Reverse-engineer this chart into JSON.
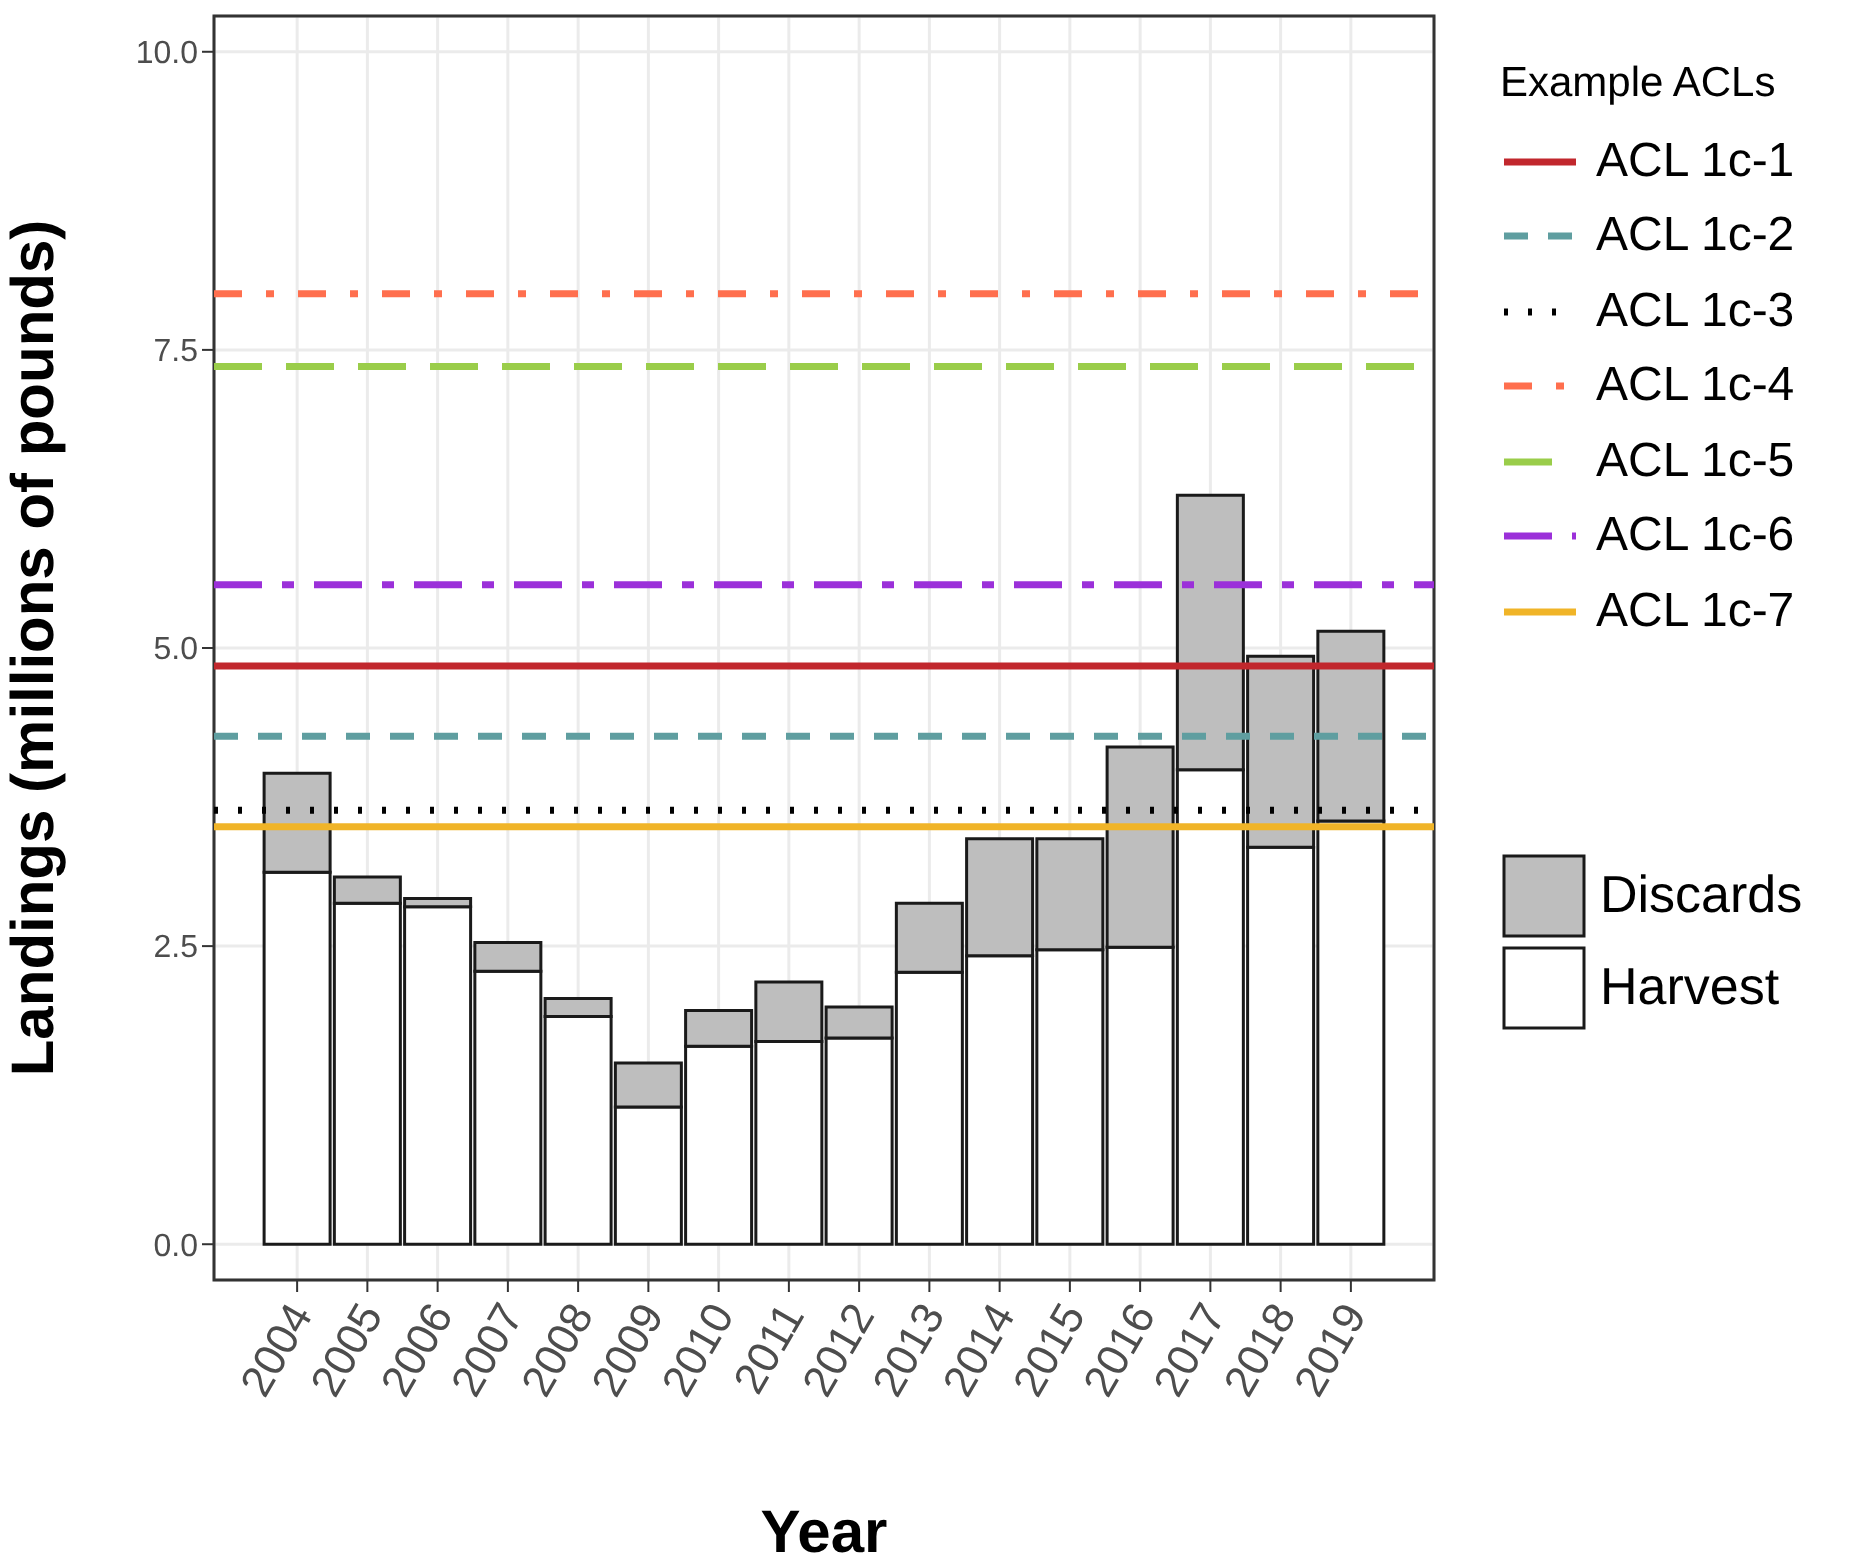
{
  "chart_data": {
    "type": "bar",
    "stacked": true,
    "xlabel": "Year",
    "ylabel": "Landings (millions of pounds)",
    "legend_title": "Example ACLs",
    "categories": [
      "2004",
      "2005",
      "2006",
      "2007",
      "2008",
      "2009",
      "2010",
      "2011",
      "2012",
      "2013",
      "2014",
      "2015",
      "2016",
      "2017",
      "2018",
      "2019"
    ],
    "series": [
      {
        "name": "Harvest",
        "color": "#ffffff",
        "values": [
          3.12,
          2.86,
          2.83,
          2.29,
          1.91,
          1.15,
          1.66,
          1.7,
          1.73,
          2.28,
          2.42,
          2.47,
          2.49,
          3.98,
          3.33,
          3.55
        ]
      },
      {
        "name": "Discards",
        "color": "#bebebe",
        "values": [
          0.83,
          0.22,
          0.07,
          0.24,
          0.15,
          0.37,
          0.3,
          0.5,
          0.26,
          0.58,
          0.98,
          0.93,
          1.68,
          2.3,
          1.6,
          1.59
        ]
      }
    ],
    "ylim": [
      -0.3,
      10.3
    ],
    "yticks": [
      {
        "value": 0,
        "label": "0.0"
      },
      {
        "value": 2.5,
        "label": "2.5"
      },
      {
        "value": 5,
        "label": "5.0"
      },
      {
        "value": 7.5,
        "label": "7.5"
      },
      {
        "value": 10,
        "label": "10.0"
      }
    ],
    "grid": true,
    "legend": "right",
    "ref_lines": [
      {
        "axis": "y",
        "value": 4.85,
        "label": "ACL 1c-1",
        "color": "#c1272d",
        "line_style": "solid"
      },
      {
        "axis": "y",
        "value": 4.26,
        "label": "ACL 1c-2",
        "color": "#5f9ea0",
        "line_style": "dashed"
      },
      {
        "axis": "y",
        "value": 3.64,
        "label": "ACL 1c-3",
        "color": "#000000",
        "line_style": "dotted"
      },
      {
        "axis": "y",
        "value": 7.97,
        "label": "ACL 1c-4",
        "color": "#ff6f4e",
        "line_style": "dashdot"
      },
      {
        "axis": "y",
        "value": 7.36,
        "label": "ACL 1c-5",
        "color": "#9acd4a",
        "line_style": "longdash"
      },
      {
        "axis": "y",
        "value": 5.53,
        "label": "ACL 1c-6",
        "color": "#9b30d9",
        "line_style": "longdashdot"
      },
      {
        "axis": "y",
        "value": 3.5,
        "label": "ACL 1c-7",
        "color": "#f0b428",
        "line_style": "solid"
      }
    ]
  }
}
